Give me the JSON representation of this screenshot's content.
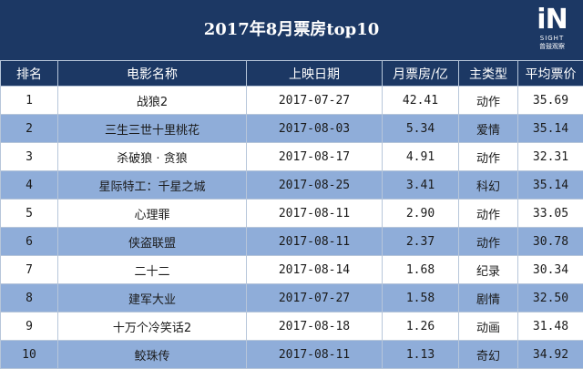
{
  "chart_data": {
    "type": "table",
    "title": "2017年8月票房top10",
    "columns": [
      "排名",
      "电影名称",
      "上映日期",
      "月票房/亿",
      "主类型",
      "平均票价"
    ],
    "rows": [
      [
        "1",
        "战狼2",
        "2017-07-27",
        "42.41",
        "动作",
        "35.69"
      ],
      [
        "2",
        "三生三世十里桃花",
        "2017-08-03",
        "5.34",
        "爱情",
        "35.14"
      ],
      [
        "3",
        "杀破狼 · 贪狼",
        "2017-08-17",
        "4.91",
        "动作",
        "32.31"
      ],
      [
        "4",
        "星际特工：千星之城",
        "2017-08-25",
        "3.41",
        "科幻",
        "35.14"
      ],
      [
        "5",
        "心理罪",
        "2017-08-11",
        "2.90",
        "动作",
        "33.05"
      ],
      [
        "6",
        "侠盗联盟",
        "2017-08-11",
        "2.37",
        "动作",
        "30.78"
      ],
      [
        "7",
        "二十二",
        "2017-08-14",
        "1.68",
        "纪录",
        "30.34"
      ],
      [
        "8",
        "建军大业",
        "2017-07-27",
        "1.58",
        "剧情",
        "32.50"
      ],
      [
        "9",
        "十万个冷笑话2",
        "2017-08-18",
        "1.26",
        "动画",
        "31.48"
      ],
      [
        "10",
        "鲛珠传",
        "2017-08-11",
        "1.13",
        "奇幻",
        "34.92"
      ]
    ]
  },
  "logo": {
    "mark": "iN",
    "line1": "SIGHT",
    "line2": "曾鼓观察"
  },
  "colors": {
    "header": "#1c3864",
    "row_alt": "#8fadd9",
    "row": "#ffffff",
    "border": "#b7c6da"
  }
}
